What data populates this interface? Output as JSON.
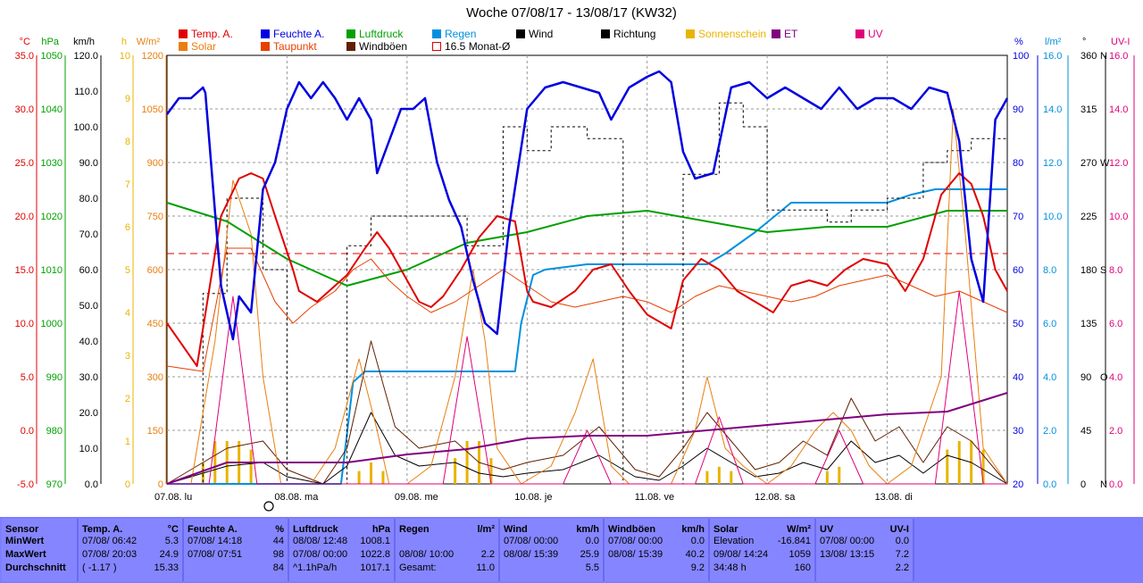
{
  "title": "Woche 07/08/17 - 13/08/17 (KW32)",
  "colors": {
    "temp": "#e00000",
    "feuchte": "#0000e0",
    "luftdruck": "#00a000",
    "regen": "#0090e0",
    "wind": "#000000",
    "richtung": "#000000",
    "sonnenschein": "#e8b400",
    "et": "#800080",
    "uv": "#e0007a",
    "solar": "#e87f10",
    "taupunkt": "#e84000",
    "windboen": "#602000",
    "monat": "#e00000"
  },
  "legend": [
    {
      "label": "Temp. A.",
      "color": "#e00000"
    },
    {
      "label": "Feuchte A.",
      "color": "#0000e0"
    },
    {
      "label": "Luftdruck",
      "color": "#00a000"
    },
    {
      "label": "Regen",
      "color": "#0090e0"
    },
    {
      "label": "Wind",
      "color": "#000000"
    },
    {
      "label": "Richtung",
      "color": "#000000"
    },
    {
      "label": "Sonnenschein",
      "color": "#e8b400"
    },
    {
      "label": "ET",
      "color": "#800080"
    },
    {
      "label": "UV",
      "color": "#e0007a"
    },
    {
      "label": "Solar",
      "color": "#e87f10"
    },
    {
      "label": "Taupunkt",
      "color": "#e84000"
    },
    {
      "label": "Windböen",
      "color": "#602000"
    },
    {
      "label": "16.5 Monat-Ø",
      "color": "#e00000"
    }
  ],
  "axes_left": [
    {
      "unit": "°C",
      "color": "#e00000",
      "ticks": [
        "35.0",
        "30.0",
        "25.0",
        "20.0",
        "15.0",
        "10.0",
        "5.0",
        "0.0",
        "-5.0"
      ]
    },
    {
      "unit": "hPa",
      "color": "#00a000",
      "ticks": [
        "1050",
        "1040",
        "1030",
        "1020",
        "1010",
        "1000",
        "990",
        "980",
        "970"
      ]
    },
    {
      "unit": "km/h",
      "color": "#000000",
      "ticks": [
        "120.0",
        "110.0",
        "100.0",
        "90.0",
        "80.0",
        "70.0",
        "60.0",
        "50.0",
        "40.0",
        "30.0",
        "20.0",
        "10.0",
        "0.0"
      ]
    },
    {
      "unit": "h",
      "color": "#e8b400",
      "ticks": [
        "10",
        "9",
        "8",
        "7",
        "6",
        "5",
        "4",
        "3",
        "2",
        "1",
        "0"
      ]
    },
    {
      "unit": "W/m²",
      "color": "#e87f10",
      "ticks": [
        "1200",
        "1050",
        "900",
        "750",
        "600",
        "450",
        "300",
        "150",
        "0"
      ]
    }
  ],
  "axes_right": [
    {
      "unit": "%",
      "color": "#0000e0",
      "ticks": [
        "100",
        "90",
        "80",
        "70",
        "60",
        "50",
        "40",
        "30",
        "20"
      ]
    },
    {
      "unit": "l/m²",
      "color": "#0090e0",
      "ticks": [
        "16.0",
        "14.0",
        "12.0",
        "10.0",
        "8.0",
        "6.0",
        "4.0",
        "2.0",
        "0.0"
      ]
    },
    {
      "unit": "°",
      "color": "#000000",
      "ticks": [
        "360",
        "315",
        "270",
        "225",
        "180",
        "135",
        "90",
        "45",
        "0"
      ],
      "dirs": [
        "N",
        "",
        "W",
        "",
        "S",
        "",
        "O",
        "",
        "N"
      ]
    },
    {
      "unit": "UV-I",
      "color": "#e0007a",
      "ticks": [
        "16.0",
        "14.0",
        "12.0",
        "10.0",
        "8.0",
        "6.0",
        "4.0",
        "2.0",
        "0.0"
      ]
    }
  ],
  "day_labels": [
    "07.08.  lu",
    "08.08.  ma",
    "09.08.  me",
    "10.08.  je",
    "11.08.  ve",
    "12.08.  sa",
    "13.08.  di"
  ],
  "chart_data": {
    "type": "line",
    "title": "Woche 07/08/17 - 13/08/17 (KW32)",
    "x_unit": "day",
    "x_range": [
      0,
      7
    ],
    "reference_line": {
      "name": "16.5 Monat-Ø",
      "value": 16.5
    },
    "series": [
      {
        "name": "Temp. A.",
        "unit": "°C",
        "x": [
          0,
          0.25,
          0.45,
          0.6,
          0.7,
          0.8,
          0.9,
          1.05,
          1.1,
          1.25,
          1.35,
          1.5,
          1.65,
          1.75,
          1.85,
          2.0,
          2.1,
          2.2,
          2.3,
          2.45,
          2.6,
          2.75,
          2.9,
          3.0,
          3.05,
          3.2,
          3.4,
          3.55,
          3.7,
          3.85,
          4.0,
          4.2,
          4.3,
          4.45,
          4.6,
          4.75,
          4.9,
          5.05,
          5.2,
          5.35,
          5.5,
          5.65,
          5.8,
          6.0,
          6.15,
          6.3,
          6.45,
          6.6,
          6.7,
          6.8,
          6.9,
          7.0
        ],
        "values": [
          10,
          6,
          20,
          23.5,
          24,
          23.5,
          20,
          15,
          13,
          12,
          13,
          14.5,
          17,
          18.5,
          17,
          14,
          12,
          11.5,
          12.5,
          15,
          18,
          20,
          19.5,
          13,
          12,
          11.5,
          13,
          15,
          15.5,
          13,
          10.8,
          9.5,
          14,
          16,
          15,
          13,
          12,
          11,
          13.5,
          14,
          13.5,
          15,
          16,
          15.5,
          13,
          16,
          22,
          24,
          23,
          20,
          15,
          13
        ]
      },
      {
        "name": "Taupunkt",
        "unit": "°C",
        "x": [
          0,
          0.3,
          0.5,
          0.7,
          0.9,
          1.05,
          1.2,
          1.4,
          1.55,
          1.7,
          1.85,
          2.0,
          2.2,
          2.4,
          2.6,
          2.8,
          3.0,
          3.2,
          3.4,
          3.6,
          3.8,
          4.0,
          4.2,
          4.4,
          4.6,
          4.8,
          5.0,
          5.2,
          5.4,
          5.6,
          5.8,
          6.0,
          6.2,
          6.4,
          6.6,
          6.8,
          7.0
        ],
        "values": [
          6,
          5.5,
          17,
          17,
          12,
          10,
          11.5,
          13,
          15,
          16,
          14,
          12.5,
          11,
          12,
          13.5,
          15,
          13.5,
          12,
          11.5,
          12,
          12.5,
          12,
          11,
          12.5,
          13.5,
          13,
          12.5,
          12,
          12.5,
          13.5,
          14,
          14.5,
          13.5,
          12.5,
          13,
          12,
          11
        ]
      },
      {
        "name": "Feuchte A.",
        "unit": "%",
        "x": [
          0,
          0.1,
          0.2,
          0.3,
          0.32,
          0.45,
          0.55,
          0.6,
          0.7,
          0.8,
          0.9,
          1.0,
          1.1,
          1.2,
          1.3,
          1.4,
          1.5,
          1.6,
          1.7,
          1.75,
          1.85,
          1.95,
          2.05,
          2.15,
          2.25,
          2.35,
          2.45,
          2.55,
          2.65,
          2.75,
          2.85,
          3.0,
          3.15,
          3.3,
          3.45,
          3.6,
          3.7,
          3.85,
          4.0,
          4.1,
          4.2,
          4.3,
          4.4,
          4.55,
          4.7,
          4.85,
          5.0,
          5.15,
          5.3,
          5.45,
          5.6,
          5.75,
          5.9,
          6.05,
          6.2,
          6.35,
          6.5,
          6.6,
          6.7,
          6.8,
          6.9,
          7.0
        ],
        "values": [
          89,
          92,
          92,
          94,
          93,
          57,
          47,
          55,
          52,
          75,
          80,
          90,
          95,
          92,
          95,
          92,
          88,
          92,
          88,
          78,
          84,
          90,
          90,
          92,
          80,
          73,
          68,
          58,
          50,
          48,
          68,
          90,
          94,
          95,
          94,
          93,
          88,
          94,
          96,
          97,
          95,
          82,
          77,
          78,
          94,
          95,
          92,
          94,
          92,
          90,
          94,
          90,
          92,
          92,
          90,
          94,
          93,
          84,
          62,
          54,
          88,
          92
        ]
      },
      {
        "name": "Luftdruck",
        "unit": "hPa",
        "x": [
          0,
          0.5,
          1.0,
          1.5,
          2.0,
          2.5,
          3.0,
          3.5,
          4.0,
          4.5,
          5.0,
          5.5,
          6.0,
          6.5,
          7.0
        ],
        "values": [
          1022.5,
          1019,
          1012,
          1007,
          1010,
          1015,
          1017,
          1020,
          1021,
          1019,
          1017,
          1018,
          1018,
          1021,
          1021
        ]
      },
      {
        "name": "Regen",
        "unit": "l/m²",
        "x": [
          0,
          1.45,
          1.55,
          1.65,
          2.0,
          2.5,
          2.9,
          2.95,
          3.05,
          3.15,
          3.5,
          4.0,
          4.3,
          4.5,
          4.65,
          4.9,
          5.2,
          5.35,
          5.6,
          6.0,
          6.2,
          6.4,
          6.6,
          7.0
        ],
        "values": [
          0,
          0,
          3.8,
          4.2,
          4.2,
          4.2,
          4.2,
          6.0,
          7.8,
          8.0,
          8.2,
          8.2,
          8.2,
          8.2,
          8.6,
          9.4,
          10.5,
          10.5,
          10.5,
          10.5,
          10.8,
          11.0,
          11.0,
          11.0
        ]
      },
      {
        "name": "Wind",
        "unit": "km/h",
        "x": [
          0,
          0.3,
          0.5,
          0.8,
          1.0,
          1.3,
          1.5,
          1.7,
          1.9,
          2.1,
          2.4,
          2.6,
          2.8,
          3.0,
          3.3,
          3.6,
          3.9,
          4.1,
          4.3,
          4.5,
          4.7,
          4.9,
          5.1,
          5.3,
          5.5,
          5.7,
          5.9,
          6.1,
          6.3,
          6.5,
          6.7,
          6.9,
          7.0
        ],
        "values": [
          0,
          3,
          5,
          6,
          2,
          0,
          5,
          20,
          8,
          5,
          6,
          3,
          2,
          3,
          4,
          8,
          2,
          1,
          5,
          10,
          6,
          2,
          3,
          6,
          4,
          12,
          6,
          8,
          3,
          8,
          6,
          2,
          0
        ]
      },
      {
        "name": "Windböen",
        "unit": "km/h",
        "x": [
          0,
          0.3,
          0.5,
          0.8,
          1.0,
          1.3,
          1.5,
          1.7,
          1.9,
          2.1,
          2.4,
          2.6,
          2.8,
          3.0,
          3.3,
          3.6,
          3.9,
          4.1,
          4.3,
          4.5,
          4.7,
          4.9,
          5.1,
          5.3,
          5.5,
          5.7,
          5.9,
          6.1,
          6.3,
          6.5,
          6.7,
          6.9,
          7.0
        ],
        "values": [
          0,
          6,
          10,
          12,
          4,
          0,
          10,
          40,
          16,
          10,
          12,
          6,
          4,
          6,
          8,
          16,
          4,
          2,
          10,
          20,
          12,
          4,
          6,
          12,
          8,
          24,
          12,
          16,
          6,
          16,
          12,
          4,
          0
        ]
      },
      {
        "name": "Solar",
        "unit": "W/m²",
        "x": [
          0,
          0.2,
          0.4,
          0.55,
          0.7,
          0.8,
          0.95,
          1.2,
          1.4,
          1.6,
          1.75,
          1.85,
          2.0,
          2.2,
          2.4,
          2.55,
          2.65,
          2.75,
          2.95,
          3.2,
          3.4,
          3.55,
          3.7,
          3.85,
          4.2,
          4.4,
          4.5,
          4.65,
          4.8,
          5.0,
          5.2,
          5.4,
          5.55,
          5.7,
          5.85,
          6.0,
          6.2,
          6.45,
          6.55,
          6.65,
          6.8,
          7.0
        ],
        "values": [
          0,
          0,
          400,
          850,
          700,
          300,
          0,
          0,
          100,
          350,
          150,
          0,
          0,
          50,
          300,
          600,
          400,
          100,
          0,
          50,
          200,
          350,
          50,
          0,
          0,
          150,
          300,
          100,
          50,
          0,
          50,
          150,
          200,
          150,
          50,
          0,
          50,
          300,
          1050,
          700,
          100,
          0
        ]
      },
      {
        "name": "UV",
        "unit": "UV-I",
        "x": [
          0,
          0.35,
          0.55,
          0.75,
          1.0,
          2.3,
          2.5,
          2.7,
          3.0,
          3.3,
          3.5,
          3.7,
          4.4,
          4.6,
          4.8,
          5.4,
          5.6,
          5.8,
          6.4,
          6.6,
          6.8,
          7.0
        ],
        "values": [
          0,
          0,
          7,
          0,
          0,
          0,
          5.5,
          0,
          0,
          0,
          2,
          0,
          0,
          2.5,
          0,
          0,
          2,
          0,
          0,
          7.2,
          0,
          0
        ]
      },
      {
        "name": "ET",
        "unit": "l/m²",
        "x": [
          0,
          0.5,
          1.0,
          1.5,
          2.0,
          2.5,
          3.0,
          3.5,
          4.0,
          4.5,
          5.0,
          5.5,
          6.0,
          6.5,
          7.0
        ],
        "values": [
          0,
          0.8,
          0.8,
          0.8,
          1.1,
          1.3,
          1.7,
          1.8,
          1.8,
          2.0,
          2.2,
          2.4,
          2.6,
          2.7,
          3.4
        ]
      },
      {
        "name": "Richtung",
        "unit": "°",
        "x": [
          0,
          0.3,
          0.5,
          0.8,
          1.0,
          1.3,
          1.5,
          1.7,
          2.0,
          2.3,
          2.5,
          2.8,
          3.0,
          3.2,
          3.5,
          3.8,
          4.0,
          4.3,
          4.6,
          4.8,
          5.0,
          5.3,
          5.5,
          5.7,
          6.0,
          6.3,
          6.5,
          6.7,
          7.0
        ],
        "values": [
          0,
          160,
          240,
          180,
          0,
          0,
          200,
          225,
          225,
          225,
          200,
          300,
          280,
          300,
          290,
          0,
          0,
          260,
          320,
          300,
          230,
          230,
          220,
          230,
          240,
          270,
          280,
          290,
          270
        ]
      },
      {
        "name": "Sonnenschein",
        "unit": "h",
        "x": [
          0.3,
          0.4,
          0.5,
          0.6,
          0.7,
          1.6,
          1.7,
          1.8,
          2.4,
          2.5,
          2.6,
          2.7,
          4.5,
          4.6,
          4.7,
          5.5,
          5.6,
          6.5,
          6.6,
          6.7,
          6.8
        ],
        "values": [
          0.5,
          1,
          1,
          1,
          0.8,
          0.3,
          0.5,
          0.3,
          0.6,
          1,
          1,
          0.6,
          0.3,
          0.4,
          0.3,
          0.3,
          0.4,
          0.8,
          1,
          1,
          0.8
        ]
      }
    ]
  },
  "table": {
    "columns": [
      {
        "title": "Sensor",
        "unit": "",
        "rows": [
          "MinWert",
          "MaxWert",
          "Durchschnitt"
        ],
        "bold": true
      },
      {
        "title": "Temp. A.",
        "unit": "°C",
        "rows": [
          [
            "07/08/  06:42",
            "5.3"
          ],
          [
            "07/08/  20:03",
            "24.9"
          ],
          [
            "( -1.17 )",
            "15.33"
          ]
        ]
      },
      {
        "title": "Feuchte A.",
        "unit": "%",
        "rows": [
          [
            "07/08/  14:18",
            "44"
          ],
          [
            "07/08/  07:51",
            "98"
          ],
          [
            "",
            "84"
          ]
        ]
      },
      {
        "title": "Luftdruck",
        "unit": "hPa",
        "rows": [
          [
            "08/08/  12:48",
            "1008.1"
          ],
          [
            "07/08/  00:00",
            "1022.8"
          ],
          [
            "^1.1hPa/h",
            "1017.1"
          ]
        ]
      },
      {
        "title": "Regen",
        "unit": "l/m²",
        "rows": [
          [
            "",
            ""
          ],
          [
            "08/08/  10:00",
            "2.2"
          ],
          [
            "Gesamt:",
            "11.0"
          ]
        ]
      },
      {
        "title": "Wind",
        "unit": "km/h",
        "rows": [
          [
            "07/08/  00:00",
            "0.0"
          ],
          [
            "08/08/  15:39",
            "25.9"
          ],
          [
            "",
            "5.5"
          ]
        ]
      },
      {
        "title": "Windböen",
        "unit": "km/h",
        "rows": [
          [
            "07/08/  00:00",
            "0.0"
          ],
          [
            "08/08/  15:39",
            "40.2"
          ],
          [
            "",
            "9.2"
          ]
        ]
      },
      {
        "title": "Solar",
        "unit": "W/m²",
        "rows": [
          [
            "Elevation",
            "-16.841"
          ],
          [
            "09/08/  14:24",
            "1059"
          ],
          [
            "34:48 h",
            "160"
          ]
        ]
      },
      {
        "title": "UV",
        "unit": "UV-I",
        "rows": [
          [
            "07/08/  00:00",
            "0.0"
          ],
          [
            "13/08/  13:15",
            "7.2"
          ],
          [
            "",
            "2.2"
          ]
        ]
      }
    ]
  }
}
